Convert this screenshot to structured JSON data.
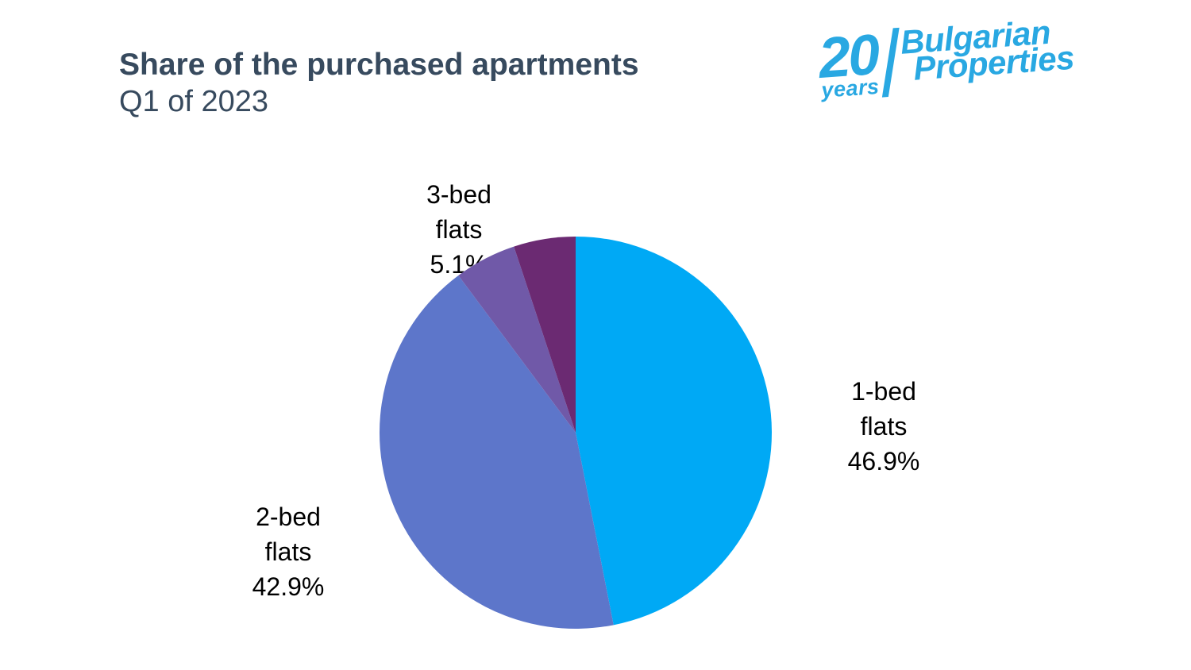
{
  "header": {
    "title": "Share of the purchased apartments",
    "subtitle": "Q1 of 2023"
  },
  "logo": {
    "number": "20",
    "years": "years",
    "brand_line1": "Bulgarian",
    "brand_line2": "Properties",
    "color": "#29A8E2"
  },
  "theme": {
    "background": "#FFFFFF",
    "title_color": "#374A5E",
    "label_color": "#000000"
  },
  "chart_data": {
    "type": "pie",
    "title": "Share of the purchased apartments",
    "subtitle": "Q1 of 2023",
    "start_angle_deg": -90,
    "direction": "clockwise",
    "legend_position": "none",
    "slices": [
      {
        "label": "1-bed flats",
        "value": 46.9,
        "pct_text": "46.9%",
        "color": "#00A9F5",
        "label_lines": [
          "1-bed",
          "flats",
          "46.9%"
        ]
      },
      {
        "label": "2-bed flats",
        "value": 42.9,
        "pct_text": "42.9%",
        "color": "#5D76CA",
        "label_lines": [
          "2-bed",
          "flats",
          "42.9%"
        ]
      },
      {
        "label": "3-bed flats",
        "value": 5.1,
        "pct_text": "5.1%",
        "color": "#7059A8",
        "label_lines": [
          "3-bed",
          "flats",
          "5.1%"
        ]
      },
      {
        "label": "",
        "value": 5.1,
        "pct_text": "",
        "color": "#6B2A72",
        "label_lines": []
      }
    ]
  }
}
